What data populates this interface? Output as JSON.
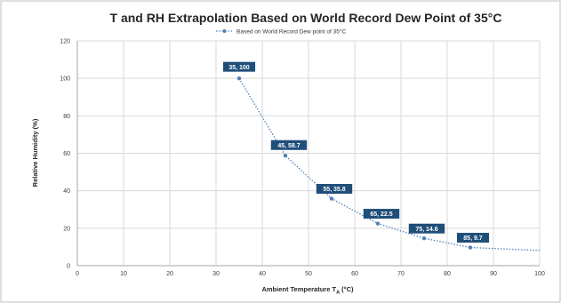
{
  "chart_data": {
    "type": "scatter",
    "title": "T and RH Extrapolation Based on World Record Dew Point of 35°C",
    "legend": {
      "label": "Based on World Record Dew point of 35°C",
      "position": "top"
    },
    "xlabel": {
      "text": "Ambient Temperature T",
      "sub": "A",
      "unit": " (°C)"
    },
    "ylabel": "Relative Humidity (%)",
    "xlim": [
      0,
      100
    ],
    "ylim": [
      0,
      120
    ],
    "xticks": [
      0,
      10,
      20,
      30,
      40,
      50,
      60,
      70,
      80,
      90,
      100
    ],
    "yticks": [
      0,
      20,
      40,
      60,
      80,
      100,
      120
    ],
    "grid": true,
    "series": [
      {
        "name": "Based on World Record Dew point of 35°C",
        "color": "#4f81bd",
        "line_style": "dotted",
        "points": [
          {
            "x": 35,
            "y": 100,
            "label": "35, 100"
          },
          {
            "x": 45,
            "y": 58.7,
            "label": "45, 58.7"
          },
          {
            "x": 55,
            "y": 35.8,
            "label": "55, 35.8"
          },
          {
            "x": 65,
            "y": 22.5,
            "label": "65, 22.5"
          },
          {
            "x": 75,
            "y": 14.6,
            "label": "75, 14.6"
          },
          {
            "x": 85,
            "y": 9.7,
            "label": "85, 9.7"
          }
        ],
        "trend_end": {
          "x": 100,
          "y": 8.1
        }
      }
    ],
    "label_fill": "#1f4e79"
  }
}
